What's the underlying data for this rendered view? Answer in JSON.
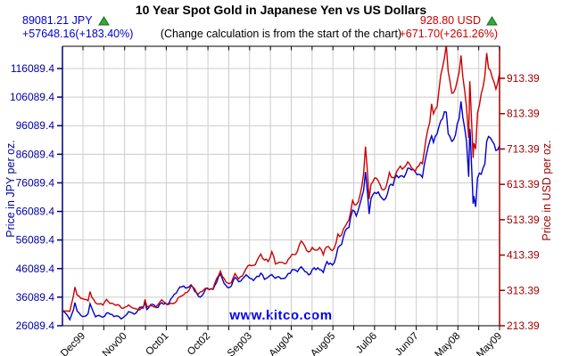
{
  "header": {
    "title": "10 Year Spot Gold in Japanese Yen vs US Dollars",
    "note": "(Change calculation is from the start of the chart)",
    "jpy": {
      "price": "89081.21 JPY",
      "change": "+57648.16(+183.40%)",
      "direction": "up"
    },
    "usd": {
      "price": "928.80 USD",
      "change": "+671.70(+261.26%)",
      "direction": "up"
    }
  },
  "watermark": "www.kitco.com",
  "colors": {
    "jpy_line": "#0000cc",
    "usd_line": "#cc0000",
    "jpy_axis": "#000080",
    "usd_axis": "#990000",
    "jpy_label": "#0000a0",
    "usd_label": "#a00000",
    "grid": "#cccccc",
    "frame": "#000000",
    "up_triangle": "#33aa33",
    "watermark_blue": "#0000ee"
  },
  "chart_data": {
    "type": "line",
    "title": "10 Year Spot Gold in Japanese Yen vs US Dollars",
    "x_start": "Jun 1999",
    "x_end": "May 2009",
    "grid": true,
    "x_axis": {
      "tick_labels": [
        "Dec99",
        "Nov00",
        "Oct01",
        "Oct02",
        "Sep03",
        "Aug04",
        "Aug05",
        "Jul06",
        "Jun07",
        "May08",
        "May09"
      ],
      "minor_ticks_between_labels": 1
    },
    "y_left": {
      "label": "Price in JPY per oz.",
      "ticks": [
        "26089.4",
        "36089.4",
        "46089.4",
        "56089.4",
        "66089.4",
        "76089.4",
        "86089.4",
        "96089.4",
        "106089.4",
        "116089.4"
      ]
    },
    "y_right": {
      "label": "Price in USD per oz.",
      "ticks": [
        "213.39",
        "313.39",
        "413.39",
        "513.39",
        "613.39",
        "713.39",
        "813.39",
        "913.39"
      ]
    },
    "t_months_from_start": [
      0,
      1,
      2,
      3,
      3.4,
      4,
      5,
      6,
      7,
      7.5,
      8,
      9,
      10,
      11,
      12,
      13,
      14,
      15,
      16,
      17,
      18,
      19,
      20,
      21,
      22,
      22.5,
      23,
      24,
      25,
      26,
      27,
      28,
      29,
      30,
      31,
      32,
      33,
      34,
      35,
      36,
      37,
      38,
      39,
      40,
      41,
      42,
      43,
      44,
      45,
      46,
      47,
      48,
      49,
      50,
      51,
      52,
      53,
      54,
      55,
      56,
      57,
      58,
      59,
      60,
      61,
      62,
      63,
      64,
      65,
      66,
      67,
      68,
      69,
      70,
      71,
      72,
      73,
      74,
      75,
      76,
      77,
      78,
      79,
      80,
      81,
      82,
      82.5,
      83,
      83.5,
      84,
      85,
      86,
      87,
      88,
      89,
      90,
      91,
      92,
      93,
      94,
      95,
      96,
      97,
      98,
      99,
      100,
      100.5,
      101,
      102,
      103,
      104,
      104.5,
      105,
      106,
      107,
      108,
      108.5,
      109,
      110,
      110.6,
      110.9,
      111,
      111.8,
      112,
      112.5,
      113,
      114,
      115,
      115.5,
      116,
      117,
      118,
      119
    ],
    "series": [
      {
        "name": "Gold in JPY",
        "axis": "left",
        "color": "#0000cc",
        "start_value": 31433.05,
        "end_value": 89081.21,
        "values": [
          31433,
          30300,
          28200,
          31700,
          34200,
          31200,
          29700,
          29400,
          30400,
          33800,
          32300,
          29200,
          29700,
          29100,
          30500,
          30100,
          29300,
          29500,
          28500,
          29500,
          31000,
          30600,
          30500,
          32500,
          32600,
          34200,
          31800,
          33500,
          33300,
          32500,
          34200,
          33900,
          34000,
          36200,
          37500,
          39700,
          40000,
          39400,
          40400,
          38200,
          36400,
          36600,
          39000,
          38700,
          38800,
          41300,
          44200,
          40900,
          39400,
          40000,
          43000,
          41500,
          42500,
          43900,
          42700,
          41900,
          43400,
          44500,
          42300,
          43100,
          44000,
          42700,
          43200,
          42700,
          43400,
          44400,
          45700,
          45000,
          46700,
          45100,
          43900,
          45700,
          45700,
          45700,
          44700,
          48500,
          48000,
          48100,
          53400,
          54500,
          59400,
          60500,
          66500,
          64500,
          68700,
          73400,
          79900,
          73100,
          65200,
          70500,
          72700,
          72900,
          70700,
          70700,
          75100,
          75200,
          78700,
          78500,
          78000,
          81200,
          80600,
          80000,
          79100,
          78000,
          85400,
          90700,
          92500,
          90200,
          93300,
          97800,
          101000,
          100800,
          93300,
          90600,
          92900,
          98600,
          104600,
          99100,
          90800,
          78200,
          95000,
          93700,
          68800,
          71500,
          67700,
          77800,
          79100,
          82700,
          90600,
          92300,
          90700,
          87400,
          89081
        ]
      },
      {
        "name": "Gold in USD",
        "axis": "right",
        "color": "#cc0000",
        "start_value": 257.1,
        "end_value": 928.8,
        "values": [
          257.1,
          255,
          254,
          299,
          323,
          300,
          291,
          288,
          284,
          310,
          294,
          278,
          275,
          272,
          288,
          276,
          274,
          273,
          264,
          266,
          272,
          264,
          261,
          258,
          263,
          288,
          267,
          270,
          266,
          273,
          287,
          278,
          274,
          276,
          282,
          296,
          301,
          308,
          326,
          318,
          303,
          310,
          320,
          317,
          318,
          347,
          368,
          347,
          334,
          336,
          361,
          346,
          354,
          375,
          385,
          384,
          398,
          416,
          399,
          395,
          423,
          388,
          393,
          392,
          391,
          407,
          415,
          425,
          453,
          438,
          422,
          435,
          427,
          435,
          414,
          437,
          429,
          433,
          473,
          470,
          495,
          513,
          568,
          556,
          582,
          644,
          720,
          653,
          572,
          613,
          632,
          623,
          599,
          604,
          647,
          632,
          650,
          665,
          661,
          677,
          661,
          650,
          665,
          672,
          743,
          789,
          841,
          813,
          833,
          923,
          971,
          1008,
          933,
          871,
          885,
          930,
          978,
          918,
          833,
          745,
          905,
          884,
          688,
          730,
          713,
          815,
          869,
          919,
          985,
          942,
          916,
          883,
          928.8
        ]
      }
    ]
  }
}
